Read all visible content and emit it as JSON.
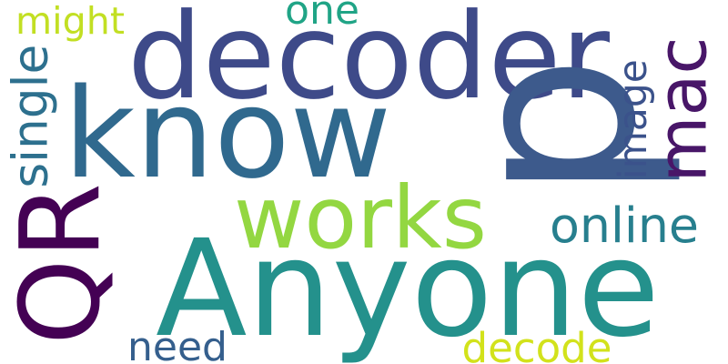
{
  "words": [
    {
      "id": "anyone",
      "text": "Anyone",
      "color": "#24918c",
      "orientation": "horizontal"
    },
    {
      "id": "decoder",
      "text": "decoder",
      "color": "#3e4a89",
      "orientation": "horizontal"
    },
    {
      "id": "know",
      "text": "know",
      "color": "#30698e",
      "orientation": "horizontal"
    },
    {
      "id": "p",
      "text": "p",
      "color": "#3d5a8c",
      "orientation": "vertical"
    },
    {
      "id": "qr",
      "text": "QR",
      "color": "#440154",
      "orientation": "vertical"
    },
    {
      "id": "works",
      "text": "works",
      "color": "#93d741",
      "orientation": "horizontal"
    },
    {
      "id": "mac",
      "text": "mac",
      "color": "#481668",
      "orientation": "vertical"
    },
    {
      "id": "image",
      "text": "image",
      "color": "#3b528b",
      "orientation": "vertical"
    },
    {
      "id": "online",
      "text": "online",
      "color": "#277f8e",
      "orientation": "horizontal"
    },
    {
      "id": "single",
      "text": "single",
      "color": "#2d708e",
      "orientation": "vertical"
    },
    {
      "id": "might",
      "text": "might",
      "color": "#c2df23",
      "orientation": "horizontal"
    },
    {
      "id": "one",
      "text": "one",
      "color": "#20a486",
      "orientation": "horizontal"
    },
    {
      "id": "need",
      "text": "need",
      "color": "#355f8d",
      "orientation": "horizontal"
    },
    {
      "id": "decode",
      "text": "decode",
      "color": "#d2e21b",
      "orientation": "horizontal"
    }
  ]
}
